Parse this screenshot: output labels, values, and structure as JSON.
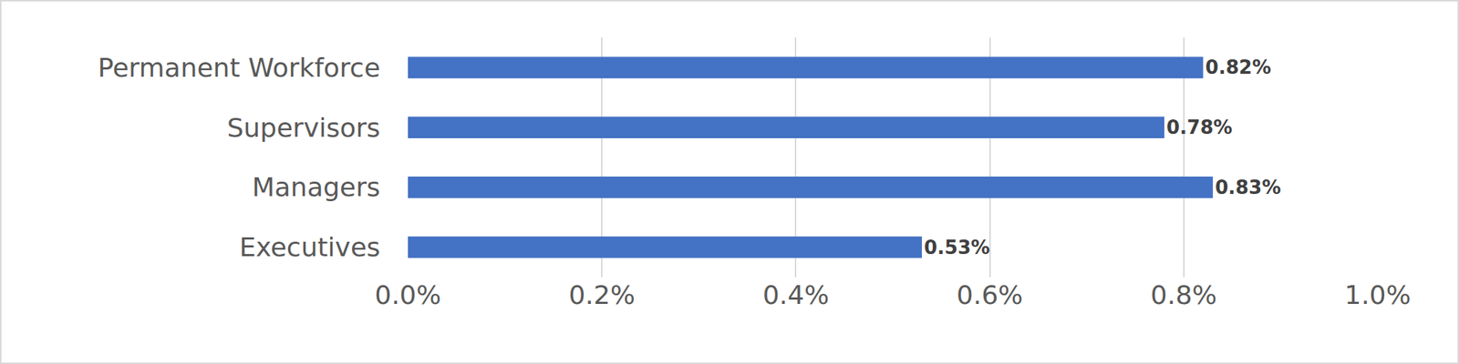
{
  "chart_data": {
    "type": "bar",
    "orientation": "horizontal",
    "categories": [
      "Permanent Workforce",
      "Supervisors",
      "Managers",
      "Executives"
    ],
    "values": [
      0.82,
      0.78,
      0.83,
      0.53
    ],
    "value_labels": [
      "0.82%",
      "0.78%",
      "0.83%",
      "0.53%"
    ],
    "color": "#4472c4",
    "xlim": [
      0,
      1
    ],
    "xticks": [
      {
        "value": 0,
        "label": "0.0%"
      },
      {
        "value": 0.2,
        "label": "0.2%"
      },
      {
        "value": 0.4,
        "label": "0.4%"
      },
      {
        "value": 0.6,
        "label": "0.6%"
      },
      {
        "value": 0.8,
        "label": "0.8%"
      },
      {
        "value": 1,
        "label": "1.0%"
      }
    ],
    "grid": true,
    "data_labels": true
  }
}
